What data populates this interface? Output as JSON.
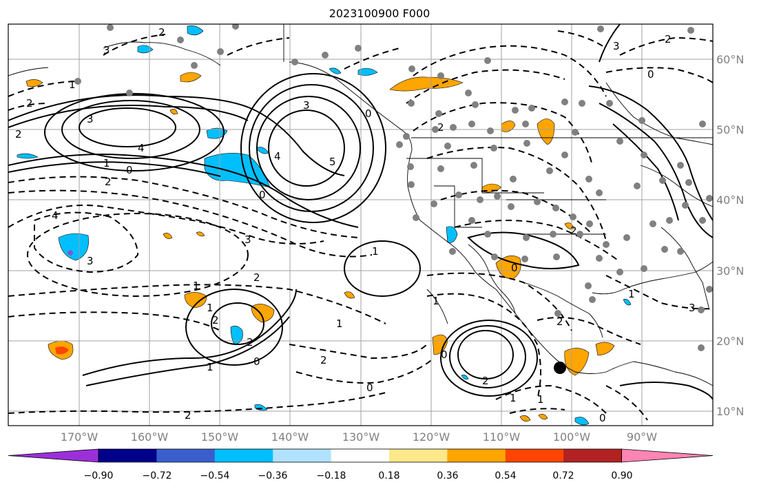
{
  "title": "2023100900 F000",
  "lat_labels": [
    "60°N",
    "50°N",
    "40°N",
    "30°N",
    "20°N",
    "10°N"
  ],
  "lon_labels": [
    "170°W",
    "160°W",
    "150°W",
    "140°W",
    "130°W",
    "120°W",
    "110°W",
    "100°W",
    "90°W"
  ],
  "colorbar": {
    "tick_labels": [
      "−0.90",
      "−0.72",
      "−0.54",
      "−0.36",
      "−0.18",
      "0.18",
      "0.36",
      "0.54",
      "0.72",
      "0.90"
    ],
    "colors": [
      "#9b30d9",
      "#00008b",
      "#3a5fcd",
      "#00bfff",
      "#b0e2ff",
      "#ffffff",
      "#ffe88a",
      "#ffa500",
      "#ff4500",
      "#b22222",
      "#ff85b3"
    ]
  },
  "contour_labels": [
    "2",
    "3",
    "2",
    "2",
    "3",
    "4",
    "1",
    "0",
    "2",
    "3",
    "5",
    "4",
    "0",
    "3",
    "4",
    "3",
    "3",
    "1",
    "0",
    "2",
    "1",
    "2",
    "1",
    "0",
    "2",
    "1",
    "2",
    "2",
    "1",
    "2",
    "0",
    "1",
    "2",
    "1",
    "0",
    "1",
    "2",
    "0",
    "2",
    "1",
    "0",
    "3",
    "0",
    "1",
    "2"
  ],
  "marker": {
    "label": "storm-center",
    "lon": -101.5,
    "lat": 16.5
  }
}
